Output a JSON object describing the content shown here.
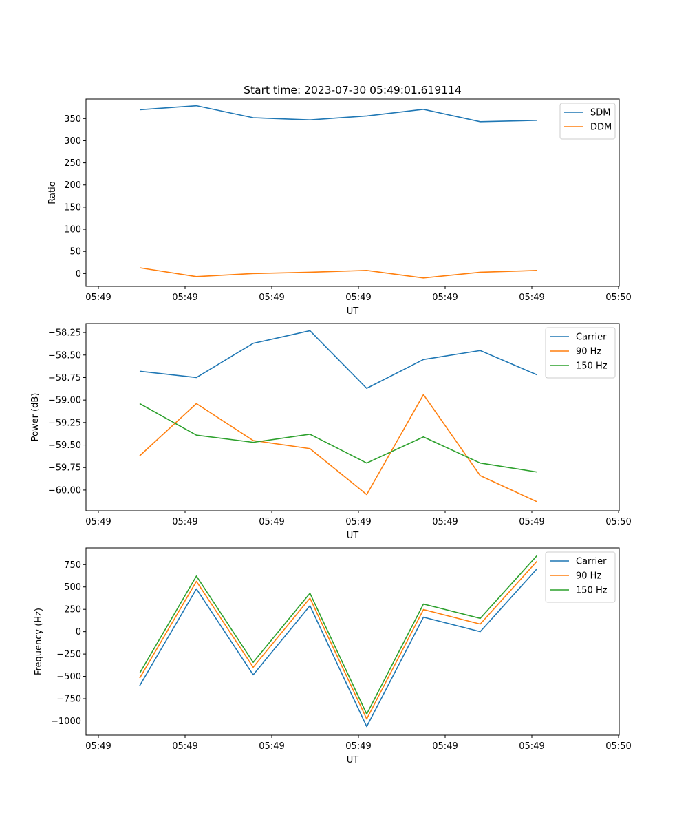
{
  "figure_title": "Start time: 2023-07-30 05:49:01.619114",
  "chart_data": [
    {
      "type": "line",
      "title": "Start time: 2023-07-30 05:49:01.619114",
      "xlabel": "UT",
      "ylabel": "Ratio",
      "x_tick_labels": [
        "05:49",
        "05:49",
        "05:49",
        "05:49",
        "05:49",
        "05:49",
        "05:50"
      ],
      "y_ticks": [
        0,
        50,
        100,
        150,
        200,
        250,
        300,
        350
      ],
      "y_tick_labels": [
        "0",
        "50",
        "100",
        "150",
        "200",
        "250",
        "300",
        "350"
      ],
      "ylim": [
        -29,
        394
      ],
      "legend_position": "top-right",
      "series": [
        {
          "name": "SDM",
          "color": "#1f77b4",
          "values": [
            370,
            379,
            352,
            347,
            356,
            371,
            343,
            346
          ]
        },
        {
          "name": "DDM",
          "color": "#ff7f0e",
          "values": [
            13,
            -7,
            0,
            3,
            7,
            -10,
            3,
            7
          ]
        }
      ]
    },
    {
      "type": "line",
      "title": "",
      "xlabel": "UT",
      "ylabel": "Power (dB)",
      "x_tick_labels": [
        "05:49",
        "05:49",
        "05:49",
        "05:49",
        "05:49",
        "05:49",
        "05:50"
      ],
      "y_ticks": [
        -60.0,
        -59.75,
        -59.5,
        -59.25,
        -59.0,
        -58.75,
        -58.5,
        -58.25
      ],
      "y_tick_labels": [
        "−60.00",
        "−59.75",
        "−59.50",
        "−59.25",
        "−59.00",
        "−58.75",
        "−58.50",
        "−58.25"
      ],
      "ylim": [
        -60.23,
        -58.15
      ],
      "legend_position": "top-right",
      "series": [
        {
          "name": "Carrier",
          "color": "#1f77b4",
          "values": [
            -58.68,
            -58.75,
            -58.37,
            -58.23,
            -58.87,
            -58.55,
            -58.45,
            -58.72
          ]
        },
        {
          "name": "90 Hz",
          "color": "#ff7f0e",
          "values": [
            -59.62,
            -59.04,
            -59.45,
            -59.54,
            -60.05,
            -58.94,
            -59.84,
            -60.13
          ]
        },
        {
          "name": "150 Hz",
          "color": "#2ca02c",
          "values": [
            -59.04,
            -59.39,
            -59.47,
            -59.38,
            -59.7,
            -59.41,
            -59.7,
            -59.8
          ]
        }
      ]
    },
    {
      "type": "line",
      "title": "",
      "xlabel": "UT",
      "ylabel": "Frequency (Hz)",
      "x_tick_labels": [
        "05:49",
        "05:49",
        "05:49",
        "05:49",
        "05:49",
        "05:49",
        "05:50"
      ],
      "y_ticks": [
        -1000,
        -750,
        -500,
        -250,
        0,
        250,
        500,
        750
      ],
      "y_tick_labels": [
        "−1000",
        "−750",
        "−500",
        "−250",
        "0",
        "250",
        "500",
        "750"
      ],
      "ylim": [
        -1158,
        937
      ],
      "legend_position": "top-right",
      "series": [
        {
          "name": "Carrier",
          "color": "#1f77b4",
          "values": [
            -605,
            478,
            -483,
            290,
            -1062,
            162,
            0,
            703
          ]
        },
        {
          "name": "90 Hz",
          "color": "#ff7f0e",
          "values": [
            -520,
            563,
            -398,
            375,
            -977,
            247,
            85,
            788
          ]
        },
        {
          "name": "150 Hz",
          "color": "#2ca02c",
          "values": [
            -465,
            622,
            -343,
            430,
            -922,
            309,
            149,
            851
          ]
        }
      ]
    }
  ]
}
